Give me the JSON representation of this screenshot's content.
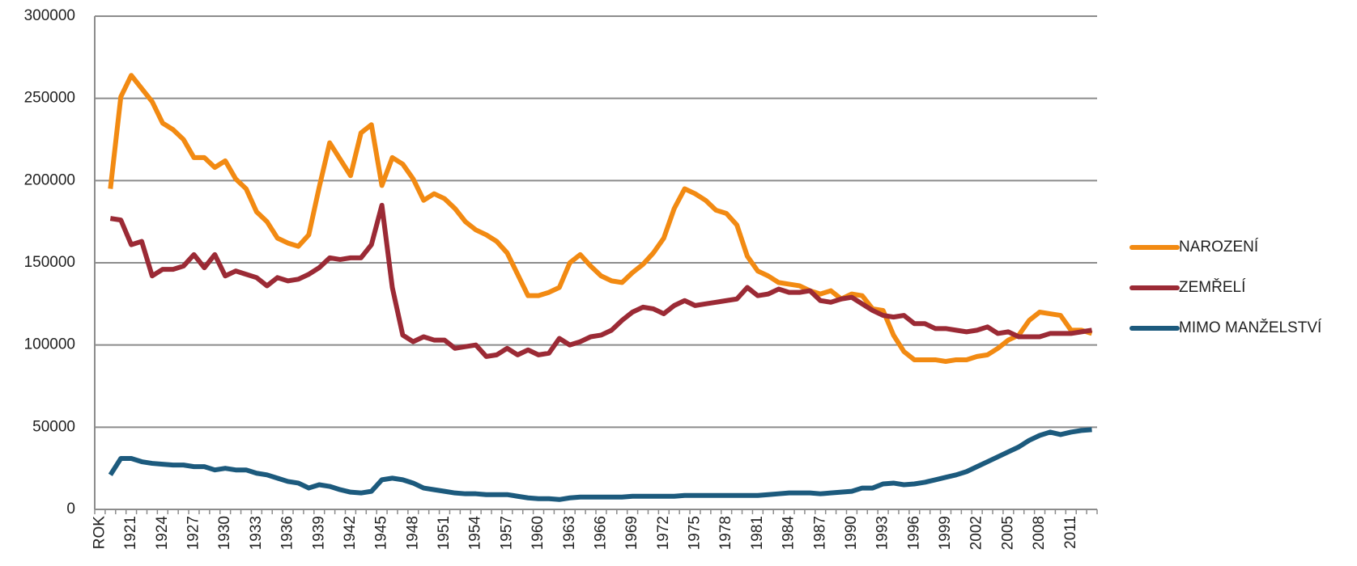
{
  "chart_data": {
    "type": "line",
    "categories": [
      "ROK",
      null,
      null,
      "1921",
      null,
      null,
      "1924",
      null,
      null,
      "1927",
      null,
      null,
      "1930",
      null,
      null,
      "1933",
      null,
      null,
      "1936",
      null,
      null,
      "1939",
      null,
      null,
      "1942",
      null,
      null,
      "1945",
      null,
      null,
      "1948",
      null,
      null,
      "1951",
      null,
      null,
      "1954",
      null,
      null,
      "1957",
      null,
      null,
      "1960",
      null,
      null,
      "1963",
      null,
      null,
      "1966",
      null,
      null,
      "1969",
      null,
      null,
      "1972",
      null,
      null,
      "1975",
      null,
      null,
      "1978",
      null,
      null,
      "1981",
      null,
      null,
      "1984",
      null,
      null,
      "1987",
      null,
      null,
      "1990",
      null,
      null,
      "1993",
      null,
      null,
      "1996",
      null,
      null,
      "1999",
      null,
      null,
      "2002",
      null,
      null,
      "2005",
      null,
      null,
      "2008",
      null,
      null,
      "2011",
      null,
      null
    ],
    "series": [
      {
        "name": "NAROZENÍ",
        "color": "#f28a12",
        "values": [
          null,
          195000,
          251000,
          264000,
          256000,
          248000,
          235000,
          231000,
          225000,
          214000,
          214000,
          208000,
          212000,
          201000,
          195000,
          181000,
          175000,
          165000,
          162000,
          160000,
          167000,
          196000,
          223000,
          213000,
          203000,
          229000,
          234000,
          197000,
          214000,
          210000,
          201000,
          188000,
          192000,
          189000,
          183000,
          175000,
          170000,
          167000,
          163000,
          156000,
          143000,
          130000,
          130000,
          132000,
          135000,
          150000,
          155000,
          148000,
          142000,
          139000,
          138000,
          144000,
          149000,
          156000,
          165000,
          183000,
          195000,
          192000,
          188000,
          182000,
          180000,
          173000,
          154000,
          145000,
          142000,
          138000,
          137000,
          136000,
          133000,
          131000,
          133000,
          128000,
          131000,
          130000,
          122000,
          121000,
          106000,
          96000,
          91000,
          91000,
          91000,
          90000,
          91000,
          91000,
          93000,
          94000,
          98000,
          103000,
          106000,
          115000,
          120000,
          119000,
          118000,
          109000,
          109000,
          107000
        ]
      },
      {
        "name": "ZEMŘELÍ",
        "color": "#9b2a35",
        "values": [
          null,
          177000,
          176000,
          161000,
          163000,
          142000,
          146000,
          146000,
          148000,
          155000,
          147000,
          155000,
          142000,
          145000,
          143000,
          141000,
          136000,
          141000,
          139000,
          140000,
          143000,
          147000,
          153000,
          152000,
          153000,
          153000,
          161000,
          185000,
          135000,
          106000,
          102000,
          105000,
          103000,
          103000,
          98000,
          99000,
          100000,
          93000,
          94000,
          98000,
          94000,
          97000,
          94000,
          95000,
          104000,
          100000,
          102000,
          105000,
          106000,
          109000,
          115000,
          120000,
          123000,
          122000,
          119000,
          124000,
          127000,
          124000,
          125000,
          126000,
          127000,
          128000,
          135000,
          130000,
          131000,
          134000,
          132000,
          132000,
          133000,
          127000,
          126000,
          128000,
          129000,
          125000,
          121000,
          118000,
          117000,
          118000,
          113000,
          113000,
          110000,
          110000,
          109000,
          108000,
          109000,
          111000,
          107000,
          108000,
          105000,
          105000,
          105000,
          107000,
          107000,
          107000,
          108000,
          109000
        ]
      },
      {
        "name": "MIMO MANŽELSTVÍ",
        "color": "#1c5a7d",
        "values": [
          null,
          21000,
          31000,
          31000,
          29000,
          28000,
          27500,
          27000,
          27000,
          26000,
          26000,
          24000,
          25000,
          24000,
          24000,
          22000,
          21000,
          19000,
          17000,
          16000,
          13000,
          15000,
          14000,
          12000,
          10500,
          10000,
          11000,
          18000,
          19000,
          18000,
          16000,
          13000,
          12000,
          11000,
          10000,
          9500,
          9500,
          9000,
          9000,
          9000,
          8000,
          7000,
          6500,
          6500,
          6000,
          7000,
          7500,
          7500,
          7500,
          7500,
          7500,
          8000,
          8000,
          8000,
          8000,
          8000,
          8500,
          8500,
          8500,
          8500,
          8500,
          8500,
          8500,
          8500,
          9000,
          9500,
          10000,
          10000,
          10000,
          9500,
          10000,
          10500,
          11000,
          13000,
          13000,
          15500,
          16000,
          15000,
          15500,
          16500,
          18000,
          19500,
          21000,
          23000,
          26000,
          29000,
          32000,
          35000,
          38000,
          42000,
          45000,
          47000,
          45500,
          47000,
          48000,
          48500
        ]
      }
    ],
    "ylim": [
      0,
      300000
    ],
    "yticks": [
      0,
      50000,
      100000,
      150000,
      200000,
      250000,
      300000
    ],
    "grid": true,
    "legend": "right"
  }
}
